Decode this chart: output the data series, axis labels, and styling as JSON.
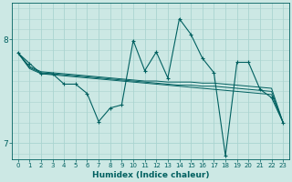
{
  "xlabel": "Humidex (Indice chaleur)",
  "ylabel": "",
  "xlim": [
    -0.5,
    23.5
  ],
  "ylim": [
    6.85,
    8.35
  ],
  "bg_color": "#cce8e4",
  "plot_bg_color": "#cce8e4",
  "line_color": "#006060",
  "grid_color": "#aad4d0",
  "yticks": [
    7,
    8
  ],
  "xticks": [
    0,
    1,
    2,
    3,
    4,
    5,
    6,
    7,
    8,
    9,
    10,
    11,
    12,
    13,
    14,
    15,
    16,
    17,
    18,
    19,
    20,
    21,
    22,
    23
  ],
  "series": [
    [
      7.87,
      7.77,
      7.67,
      7.67,
      7.57,
      7.57,
      7.48,
      7.21,
      7.34,
      7.37,
      7.99,
      7.7,
      7.88,
      7.63,
      8.2,
      8.05,
      7.82,
      7.68,
      6.88,
      7.78,
      7.78,
      7.52,
      7.44,
      7.2
    ],
    [
      7.87,
      7.72,
      7.67,
      7.66,
      7.65,
      7.64,
      7.63,
      7.62,
      7.61,
      7.6,
      7.59,
      7.58,
      7.57,
      7.56,
      7.55,
      7.54,
      7.53,
      7.52,
      7.51,
      7.5,
      7.49,
      7.48,
      7.47,
      7.2
    ],
    [
      7.87,
      7.74,
      7.69,
      7.68,
      7.67,
      7.66,
      7.65,
      7.64,
      7.63,
      7.62,
      7.61,
      7.6,
      7.6,
      7.59,
      7.59,
      7.59,
      7.58,
      7.58,
      7.57,
      7.56,
      7.55,
      7.54,
      7.53,
      7.2
    ],
    [
      7.87,
      7.73,
      7.68,
      7.67,
      7.66,
      7.65,
      7.64,
      7.63,
      7.62,
      7.61,
      7.6,
      7.59,
      7.58,
      7.57,
      7.56,
      7.56,
      7.55,
      7.55,
      7.54,
      7.53,
      7.52,
      7.51,
      7.5,
      7.2
    ]
  ]
}
